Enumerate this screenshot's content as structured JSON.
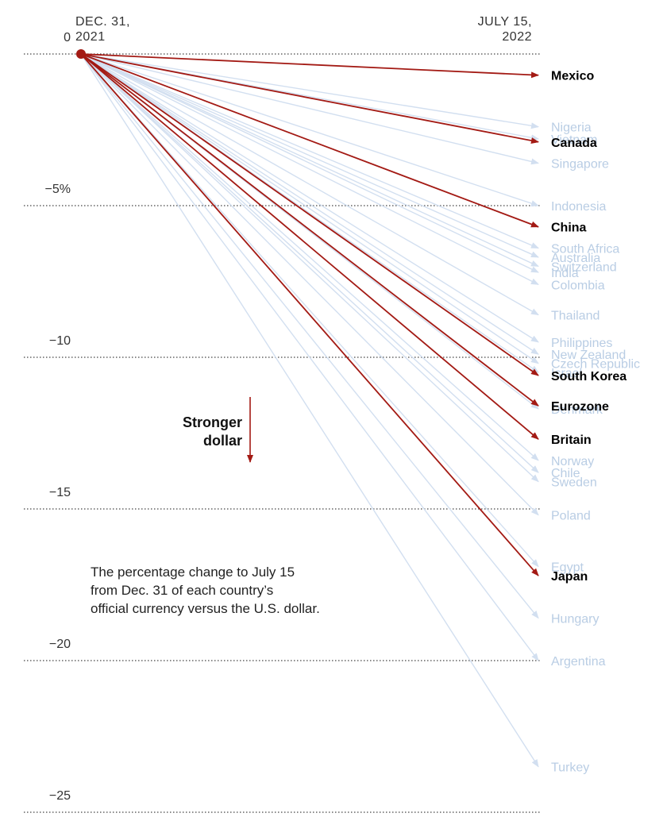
{
  "chart_data": {
    "type": "slope",
    "x": [
      "Dec. 31, 2021",
      "July 15, 2022"
    ],
    "start_label": [
      "DEC. 31,",
      "2021"
    ],
    "end_label": [
      "JULY 15,",
      "2022"
    ],
    "yticks": [
      {
        "value": 0,
        "label": "0"
      },
      {
        "value": -5,
        "label": "−5%"
      },
      {
        "value": -10,
        "label": "−10"
      },
      {
        "value": -15,
        "label": "−15"
      },
      {
        "value": -20,
        "label": "−20"
      },
      {
        "value": -25,
        "label": "−25"
      }
    ],
    "ylim": [
      0,
      -25
    ],
    "grid": true,
    "annotation": [
      "Stronger",
      "dollar"
    ],
    "note": [
      "The percentage change to July 15",
      "from Dec. 31 of each country’s",
      "official currency versus the U.S. dollar."
    ],
    "colors": {
      "highlight": "#a31a14",
      "muted": "#d2dff0",
      "muted_label": "#b9cde4",
      "label_dark": "#000000",
      "tick": "#333333"
    },
    "series": [
      {
        "name": "Mexico",
        "value": -0.7,
        "highlight": true
      },
      {
        "name": "Nigeria",
        "value": -2.4,
        "highlight": false
      },
      {
        "name": "Vietnam",
        "value": -2.8,
        "highlight": false
      },
      {
        "name": "Canada",
        "value": -2.9,
        "highlight": true
      },
      {
        "name": "Singapore",
        "value": -3.6,
        "highlight": false
      },
      {
        "name": "Indonesia",
        "value": -5.0,
        "highlight": false
      },
      {
        "name": "China",
        "value": -5.7,
        "highlight": true
      },
      {
        "name": "South Africa",
        "value": -6.4,
        "highlight": false
      },
      {
        "name": "Australia",
        "value": -6.7,
        "highlight": false
      },
      {
        "name": "Switzerland",
        "value": -7.0,
        "highlight": false
      },
      {
        "name": "India",
        "value": -7.2,
        "highlight": false
      },
      {
        "name": "Colombia",
        "value": -7.6,
        "highlight": false
      },
      {
        "name": "Thailand",
        "value": -8.6,
        "highlight": false
      },
      {
        "name": "Philippines",
        "value": -9.5,
        "highlight": false
      },
      {
        "name": "New Zealand",
        "value": -9.9,
        "highlight": false
      },
      {
        "name": "Czech Republic",
        "value": -10.2,
        "highlight": false
      },
      {
        "name": "Israel",
        "value": -10.5,
        "highlight": false
      },
      {
        "name": "South Korea",
        "value": -10.6,
        "highlight": true
      },
      {
        "name": "Eurozone",
        "value": -11.6,
        "highlight": true
      },
      {
        "name": "Denmark",
        "value": -11.7,
        "highlight": false
      },
      {
        "name": "Britain",
        "value": -12.7,
        "highlight": true
      },
      {
        "name": "Norway",
        "value": -13.4,
        "highlight": false
      },
      {
        "name": "Chile",
        "value": -13.8,
        "highlight": false
      },
      {
        "name": "Sweden",
        "value": -14.1,
        "highlight": false
      },
      {
        "name": "Poland",
        "value": -15.2,
        "highlight": false
      },
      {
        "name": "Egypt",
        "value": -16.9,
        "highlight": false
      },
      {
        "name": "Japan",
        "value": -17.2,
        "highlight": true
      },
      {
        "name": "Hungary",
        "value": -18.6,
        "highlight": false
      },
      {
        "name": "Argentina",
        "value": -20.0,
        "highlight": false
      },
      {
        "name": "Turkey",
        "value": -23.5,
        "highlight": false
      }
    ]
  }
}
